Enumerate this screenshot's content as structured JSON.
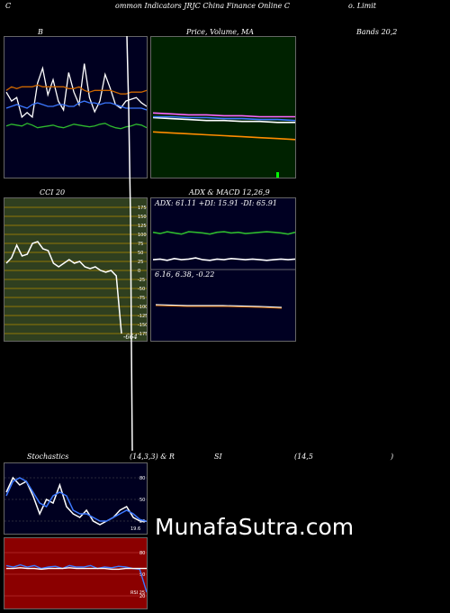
{
  "header": {
    "c": "C",
    "title_mid": "ommon Indicators JRJC China Finance Online C",
    "title_right": "o. Limit"
  },
  "labels": {
    "bb": "B",
    "price_ma": "Price, Volume, MA",
    "bands": "Bands 20,2",
    "cci": "CCI 20",
    "adx_macd": "ADX & MACD 12,26,9",
    "adx_values": "ADX: 61.11 +DI: 15.91 -DI: 65.91",
    "macd_values": "6.16, 6.38, -0.22",
    "cci_value": "-664",
    "stoch_left": "Stochastics",
    "stoch_mid": "(14,3,3) & R",
    "stoch_rsi": "SI",
    "stoch_rsi_params": "(14,5",
    "stoch_close": ")",
    "stoch_value": "19.6",
    "rsi_value": "RSI 25",
    "watermark": "MunafaSutra.com"
  },
  "colors": {
    "bb_bg": "#000020",
    "price_bg": "#002200",
    "cci_bg": "#2f3f1f",
    "adx_bg": "#000022",
    "stoch_bg": "#000020",
    "rsi_bg": "#8b0000",
    "white": "#ffffff",
    "blue": "#3c78ff",
    "green": "#2eb82e",
    "orange": "#cc6600"
  },
  "chart_data": [
    {
      "type": "line",
      "panel": "bollinger_bands",
      "series": [
        {
          "color": "#2eb82e",
          "values": [
            60,
            62,
            61,
            60,
            63,
            61,
            58,
            59,
            60,
            61,
            59,
            58,
            60,
            62,
            61,
            60,
            59,
            60,
            62,
            63,
            60,
            58,
            57,
            59,
            60,
            62,
            61,
            58
          ]
        },
        {
          "color": "#ffffff",
          "values": [
            98,
            88,
            92,
            70,
            75,
            70,
            108,
            125,
            95,
            112,
            88,
            78,
            120,
            98,
            84,
            130,
            92,
            76,
            88,
            118,
            102,
            84,
            80,
            88,
            90,
            92,
            86,
            82
          ]
        },
        {
          "color": "#3c78ff",
          "values": [
            80,
            82,
            84,
            82,
            80,
            84,
            86,
            84,
            82,
            82,
            84,
            84,
            82,
            82,
            86,
            88,
            86,
            86,
            84,
            86,
            86,
            84,
            82,
            80,
            80,
            80,
            80,
            78
          ]
        },
        {
          "color": "#cc6600",
          "values": [
            100,
            104,
            102,
            104,
            104,
            104,
            106,
            104,
            104,
            104,
            104,
            104,
            102,
            102,
            104,
            100,
            98,
            100,
            100,
            100,
            100,
            98,
            96,
            96,
            98,
            98,
            98,
            100
          ]
        }
      ]
    },
    {
      "type": "line",
      "panel": "price_volume_ma",
      "series": [
        {
          "color": "#ff8c00",
          "values": [
            50,
            49,
            48,
            47,
            46,
            45,
            44,
            43,
            42
          ]
        },
        {
          "color": "#ffffff",
          "values": [
            65,
            64,
            63,
            62,
            62,
            61,
            61,
            60,
            60
          ]
        },
        {
          "color": "#3c78ff",
          "values": [
            66,
            66,
            65,
            65,
            64,
            64,
            63,
            63,
            62
          ]
        },
        {
          "color": "#ff66ff",
          "values": [
            70,
            69,
            68,
            68,
            67,
            67,
            66,
            66,
            66
          ]
        }
      ]
    },
    {
      "type": "line",
      "panel": "cci",
      "yticks": [
        175,
        150,
        125,
        100,
        75,
        50,
        25,
        0,
        -25,
        -50,
        -75,
        -100,
        -125,
        -150,
        -175
      ],
      "series": [
        {
          "color": "#ffffff",
          "values": [
            20,
            35,
            70,
            40,
            45,
            75,
            80,
            60,
            55,
            20,
            10,
            20,
            30,
            20,
            25,
            10,
            5,
            10,
            0,
            -5,
            0,
            -15,
            -664
          ]
        }
      ]
    },
    {
      "type": "line",
      "panel": "adx_macd",
      "series": [
        {
          "color": "#2eb82e",
          "values": [
            61,
            59,
            62,
            60,
            58,
            62,
            61,
            60,
            58,
            61,
            62,
            60,
            61,
            59,
            60,
            61,
            62,
            61,
            60,
            58,
            61
          ]
        },
        {
          "color": "#ffffff",
          "values": [
            15,
            16,
            14,
            17,
            15,
            16,
            18,
            15,
            14,
            16,
            15,
            17,
            16,
            15,
            16,
            15,
            14,
            15,
            16,
            15,
            16
          ]
        }
      ]
    },
    {
      "type": "line",
      "panel": "stochastics",
      "yticks": [
        80,
        50,
        20
      ],
      "series": [
        {
          "color": "#ffffff",
          "values": [
            60,
            80,
            70,
            75,
            55,
            30,
            50,
            45,
            70,
            40,
            30,
            25,
            35,
            20,
            15,
            20,
            25,
            35,
            40,
            25,
            20,
            19.6
          ]
        },
        {
          "color": "#3c78ff",
          "values": [
            55,
            75,
            80,
            75,
            60,
            45,
            40,
            55,
            60,
            55,
            35,
            30,
            30,
            25,
            20,
            20,
            25,
            30,
            35,
            30,
            22,
            19.6
          ]
        }
      ]
    },
    {
      "type": "line",
      "panel": "rsi",
      "yticks": [
        80,
        50,
        20
      ],
      "series": [
        {
          "color": "#3c78ff",
          "values": [
            62,
            60,
            63,
            60,
            62,
            58,
            60,
            61,
            58,
            62,
            60,
            60,
            62,
            58,
            60,
            59,
            61,
            60,
            58,
            57,
            25
          ]
        },
        {
          "color": "#ffffff",
          "values": [
            58,
            58,
            59,
            58,
            58,
            57,
            58,
            58,
            58,
            59,
            58,
            58,
            58,
            58,
            58,
            57,
            57,
            58,
            58,
            58,
            58
          ]
        }
      ]
    }
  ]
}
